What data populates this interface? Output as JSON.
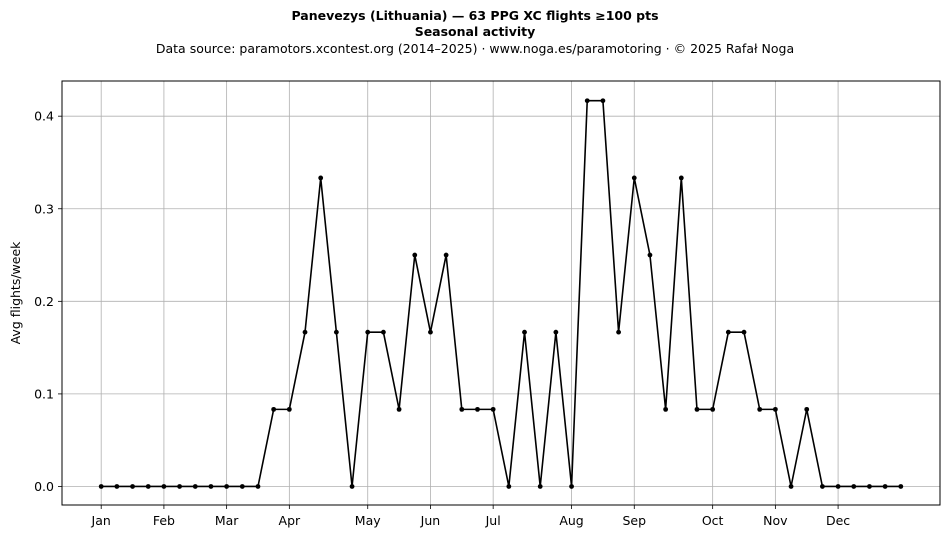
{
  "chart_data": {
    "type": "line",
    "title": "Panevezys (Lithuania)  —  63 PPG XC flights ≥100 pts",
    "subtitle": "Seasonal activity",
    "source_line": "Data source: paramotors.xcontest.org (2014–2025)  ·  www.noga.es/paramotoring  ·  © 2025 Rafał Noga",
    "xlabel": "",
    "ylabel": "Avg flights/week",
    "x_ticks": [
      {
        "label": "Jan",
        "x": 1
      },
      {
        "label": "Feb",
        "x": 5
      },
      {
        "label": "Mar",
        "x": 9
      },
      {
        "label": "Apr",
        "x": 13
      },
      {
        "label": "May",
        "x": 18
      },
      {
        "label": "Jun",
        "x": 22
      },
      {
        "label": "Jul",
        "x": 26
      },
      {
        "label": "Aug",
        "x": 31
      },
      {
        "label": "Sep",
        "x": 35
      },
      {
        "label": "Oct",
        "x": 40
      },
      {
        "label": "Nov",
        "x": 44
      },
      {
        "label": "Dec",
        "x": 48
      }
    ],
    "y_ticks": [
      0.0,
      0.1,
      0.2,
      0.3,
      0.4
    ],
    "y_tick_labels": [
      "0.0",
      "0.1",
      "0.2",
      "0.3",
      "0.4"
    ],
    "xlim": [
      -1.5,
      54.5
    ],
    "ylim": [
      -0.02,
      0.438
    ],
    "grid": true,
    "line_color": "#000000",
    "grid_color": "#b0b0b0",
    "x": [
      1,
      2,
      3,
      4,
      5,
      6,
      7,
      8,
      9,
      10,
      11,
      12,
      13,
      14,
      15,
      16,
      17,
      18,
      19,
      20,
      21,
      22,
      23,
      24,
      25,
      26,
      27,
      28,
      29,
      30,
      31,
      32,
      33,
      34,
      35,
      36,
      37,
      38,
      39,
      40,
      41,
      42,
      43,
      44,
      45,
      46,
      47,
      48,
      49,
      50,
      51,
      52
    ],
    "values": [
      0,
      0,
      0,
      0,
      0,
      0,
      0,
      0,
      0,
      0,
      0,
      0.0833,
      0.0833,
      0.1667,
      0.3333,
      0.1667,
      0,
      0.1667,
      0.1667,
      0.0833,
      0.25,
      0.1667,
      0.25,
      0.0833,
      0.0833,
      0.0833,
      0,
      0.1667,
      0,
      0.1667,
      0,
      0.4167,
      0.4167,
      0.1667,
      0.3333,
      0.25,
      0.0833,
      0.3333,
      0.0833,
      0.0833,
      0.1667,
      0.1667,
      0.0833,
      0.0833,
      0,
      0.0833,
      0,
      0,
      0,
      0,
      0,
      0
    ]
  }
}
